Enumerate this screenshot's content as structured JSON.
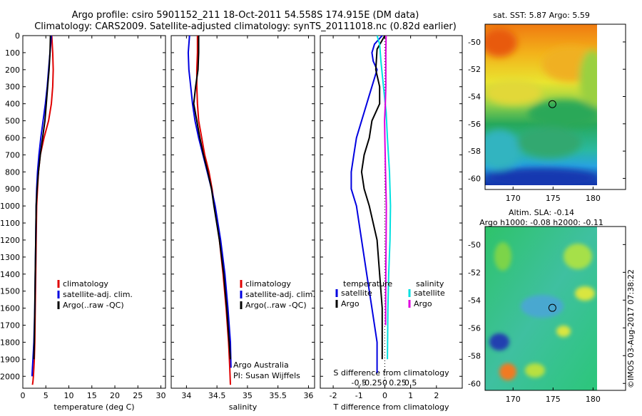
{
  "title": {
    "line1": "Argo profile: csiro 5901152_211 18-Oct-2011 54.558S 174.915E (DM data)",
    "line2": "Climatology: CARS2009. Satellite-adjusted climatology: synTS_20111018.nc (0.82d earlier)"
  },
  "footer_stamp": "©IMOS 03-Aug-2017 07:38:22",
  "colors": {
    "climatology": "#e00000",
    "satellite": "#0000e0",
    "argo": "#000000",
    "satellite_salinity": "#00e0e0",
    "argo_salinity": "#e000e0"
  },
  "chart_data": [
    {
      "type": "line",
      "id": "temperature",
      "xlabel": "temperature (deg C)",
      "xlim": [
        0,
        31
      ],
      "xticks": [
        0,
        5,
        10,
        15,
        20,
        25,
        30
      ],
      "ylim": [
        2070,
        0
      ],
      "yticks": [
        0,
        100,
        200,
        300,
        400,
        500,
        600,
        700,
        800,
        900,
        1000,
        1100,
        1200,
        1300,
        1400,
        1500,
        1600,
        1700,
        1800,
        1900,
        2000
      ],
      "legend": [
        "climatology",
        "satellite-adj. clim.",
        "Argo(..raw -QC)"
      ],
      "legend_position": "lower-center",
      "series": [
        {
          "name": "climatology",
          "color_key": "climatology",
          "x": [
            6.3,
            6.5,
            6.6,
            6.5,
            6.2,
            5.6,
            4.6,
            3.8,
            3.4,
            3.2,
            3.0,
            2.9,
            2.8,
            2.7,
            2.6,
            2.5,
            2.4,
            2.3,
            2.2,
            2.1
          ],
          "y": [
            0,
            100,
            200,
            300,
            400,
            500,
            600,
            700,
            800,
            900,
            1000,
            1200,
            1400,
            1600,
            1800,
            1900,
            1950,
            2000,
            2030,
            2050
          ]
        },
        {
          "name": "satellite-adj. clim.",
          "color_key": "satellite",
          "x": [
            6.2,
            5.9,
            5.6,
            5.3,
            4.9,
            4.4,
            3.9,
            3.5,
            3.2,
            3.0,
            2.9,
            2.8,
            2.7,
            2.6,
            2.4,
            2.2,
            2.1,
            2.0
          ],
          "y": [
            0,
            100,
            200,
            300,
            400,
            500,
            600,
            700,
            800,
            900,
            1000,
            1200,
            1400,
            1600,
            1800,
            1900,
            1950,
            2000
          ]
        },
        {
          "name": "Argo(..raw -QC)",
          "color_key": "argo",
          "x": [
            6.0,
            5.9,
            5.7,
            5.4,
            5.1,
            4.8,
            4.3,
            3.8,
            3.4,
            3.1,
            2.9,
            2.8,
            2.7,
            2.6,
            2.5,
            2.4
          ],
          "y": [
            0,
            100,
            200,
            300,
            400,
            500,
            600,
            700,
            800,
            900,
            1000,
            1200,
            1400,
            1600,
            1800,
            1900
          ]
        }
      ]
    },
    {
      "type": "line",
      "id": "salinity",
      "xlabel": "salinity",
      "xlim": [
        33.75,
        36.1
      ],
      "xticks": [
        34,
        34.5,
        35,
        35.5,
        36
      ],
      "ylim": [
        2070,
        0
      ],
      "legend": [
        "climatology",
        "satellite-adj. clim.",
        "Argo(..raw -QC)"
      ],
      "legend_position": "lower-center",
      "annotations": [
        "Argo Australia",
        "PI: Susan Wijffels"
      ],
      "series": [
        {
          "name": "climatology",
          "color_key": "climatology",
          "x": [
            34.18,
            34.18,
            34.17,
            34.17,
            34.18,
            34.2,
            34.25,
            34.3,
            34.37,
            34.42,
            34.46,
            34.54,
            34.6,
            34.65,
            34.69,
            34.71,
            34.72
          ],
          "y": [
            0,
            100,
            200,
            300,
            400,
            500,
            600,
            700,
            800,
            900,
            1000,
            1200,
            1400,
            1600,
            1800,
            1950,
            2050
          ]
        },
        {
          "name": "satellite-adj. clim.",
          "color_key": "satellite",
          "x": [
            34.05,
            34.03,
            34.04,
            34.07,
            34.1,
            34.14,
            34.2,
            34.27,
            34.34,
            34.41,
            34.47,
            34.56,
            34.63,
            34.68,
            34.72,
            34.73
          ],
          "y": [
            0,
            100,
            200,
            300,
            400,
            500,
            600,
            700,
            800,
            900,
            1000,
            1200,
            1400,
            1600,
            1800,
            1950
          ]
        },
        {
          "name": "Argo(..raw -QC)",
          "color_key": "argo",
          "x": [
            34.2,
            34.2,
            34.19,
            34.15,
            34.12,
            34.17,
            34.22,
            34.28,
            34.35,
            34.41,
            34.45,
            34.54,
            34.61,
            34.66,
            34.7,
            34.72
          ],
          "y": [
            0,
            100,
            200,
            300,
            400,
            500,
            600,
            700,
            800,
            900,
            1000,
            1200,
            1400,
            1600,
            1800,
            1900
          ]
        }
      ]
    },
    {
      "type": "line",
      "id": "differences",
      "xlabel": "T difference from climatology",
      "xlabel_top": "S difference from climatology",
      "xlim": [
        -2.5,
        3.0
      ],
      "xticks": [
        -2,
        -1,
        0,
        1,
        2
      ],
      "xticks_top": [
        -0.5,
        -0.25,
        0,
        0.25,
        0.5
      ],
      "ylim": [
        2070,
        0
      ],
      "legend_headers": [
        "temperature",
        "salinity"
      ],
      "legend": [
        "satellite",
        "Argo",
        "satellite",
        "Argo"
      ],
      "series": [
        {
          "name": "satellite",
          "group": "temperature",
          "color_key": "satellite",
          "x": [
            -0.1,
            -0.4,
            -0.5,
            -0.45,
            -0.3,
            -0.6,
            -0.9,
            -1.1,
            -1.2,
            -1.3,
            -1.3,
            -1.1,
            -0.9,
            -0.7,
            -0.5,
            -0.3,
            -0.3
          ],
          "y": [
            0,
            50,
            100,
            150,
            200,
            350,
            500,
            600,
            700,
            800,
            900,
            1000,
            1200,
            1400,
            1600,
            1800,
            1980
          ]
        },
        {
          "name": "Argo",
          "group": "temperature",
          "color_key": "argo",
          "x": [
            0.0,
            -0.3,
            -0.35,
            -0.2,
            -0.2,
            -0.5,
            -0.6,
            -0.8,
            -0.9,
            -0.8,
            -0.6,
            -0.3,
            -0.2,
            -0.1,
            -0.1
          ],
          "y": [
            0,
            80,
            200,
            300,
            400,
            500,
            600,
            700,
            800,
            900,
            1000,
            1200,
            1400,
            1600,
            1900
          ]
        },
        {
          "name": "satellite",
          "group": "salinity",
          "color_key": "satellite_salinity",
          "x": [
            -0.3,
            -0.2,
            -0.15,
            -0.05,
            0.05,
            0.1,
            0.18,
            0.22,
            0.2,
            0.15,
            0.12,
            0.1
          ],
          "y": [
            0,
            50,
            150,
            300,
            450,
            600,
            800,
            1000,
            1200,
            1400,
            1600,
            1900
          ]
        },
        {
          "name": "Argo",
          "group": "salinity",
          "color_key": "argo_salinity",
          "x": [
            0.05,
            0.04,
            0.04,
            0.02,
            -0.01,
            0.0,
            0.03,
            0.06,
            0.05,
            0.04,
            0.03
          ],
          "y": [
            0,
            100,
            300,
            400,
            500,
            600,
            800,
            1000,
            1200,
            1400,
            1700
          ]
        }
      ]
    },
    {
      "type": "heatmap",
      "id": "sst_map",
      "title": "sat. SST: 5.87 Argo: 5.59",
      "xlim": [
        166.5,
        180.5
      ],
      "ylim": [
        -60.5,
        -48.7
      ],
      "xticks": [
        170,
        175,
        180
      ],
      "yticks": [
        -50,
        -52,
        -54,
        -56,
        -58,
        -60
      ],
      "argo_position": {
        "lon": 174.915,
        "lat": -54.558
      }
    },
    {
      "type": "heatmap",
      "id": "sla_map",
      "title": "Altim. SLA: -0.14",
      "subtitle": "Argo h1000: -0.08 h2000: -0.11",
      "xlim": [
        166.5,
        180.5
      ],
      "ylim": [
        -60.5,
        -48.7
      ],
      "xticks": [
        170,
        175,
        180
      ],
      "yticks": [
        -50,
        -52,
        -54,
        -56,
        -58,
        -60
      ],
      "argo_position": {
        "lon": 174.915,
        "lat": -54.558
      }
    }
  ]
}
